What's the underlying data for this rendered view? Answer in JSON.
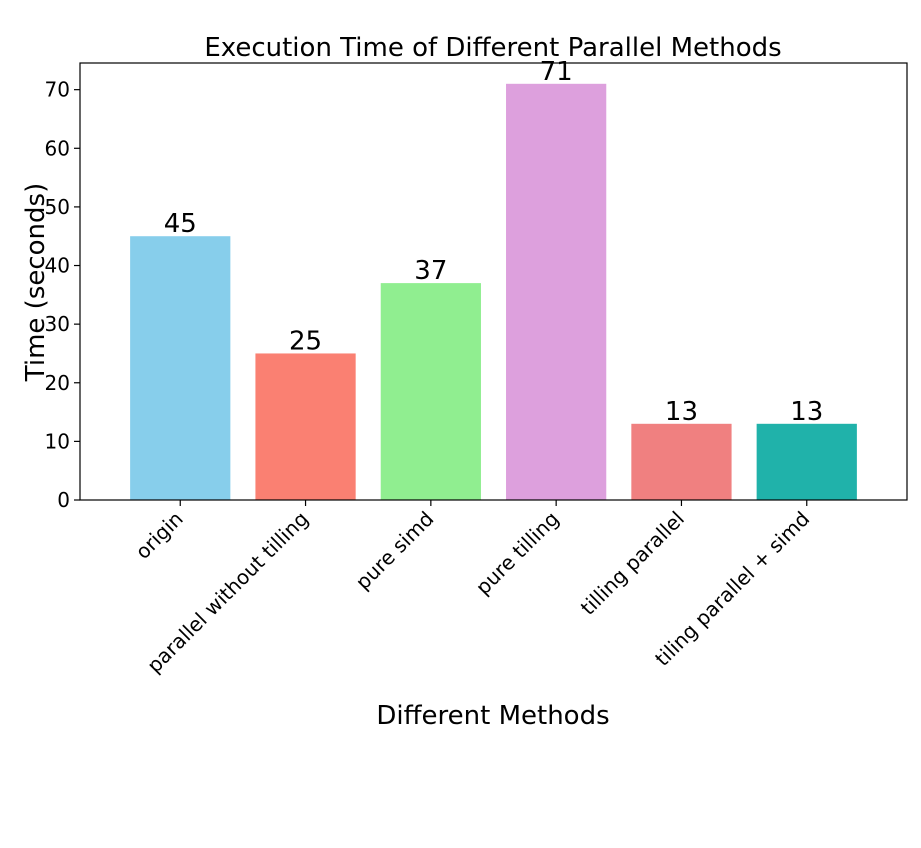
{
  "chart_data": {
    "type": "bar",
    "title": "Execution Time of Different Parallel Methods",
    "xlabel": "Different Methods",
    "ylabel": "Time (seconds)",
    "categories": [
      "origin",
      "parallel without tilling",
      "pure simd",
      "pure tilling",
      "tilling parallel",
      "tiling parallel + simd"
    ],
    "values": [
      45,
      25,
      37,
      71,
      13,
      13
    ],
    "colors": [
      "#87ceeb",
      "#fa8072",
      "#90ee90",
      "#dda0dd",
      "#f08080",
      "#20b2aa"
    ],
    "data_labels": [
      "45",
      "25",
      "37",
      "71",
      "13",
      "13"
    ],
    "ylim": [
      0,
      74.55
    ],
    "yticks": [
      0,
      10,
      20,
      30,
      40,
      50,
      60,
      70
    ],
    "ytick_labels": [
      "0",
      "10",
      "20",
      "30",
      "40",
      "50",
      "60",
      "70"
    ],
    "grid": false,
    "legend": "none"
  }
}
